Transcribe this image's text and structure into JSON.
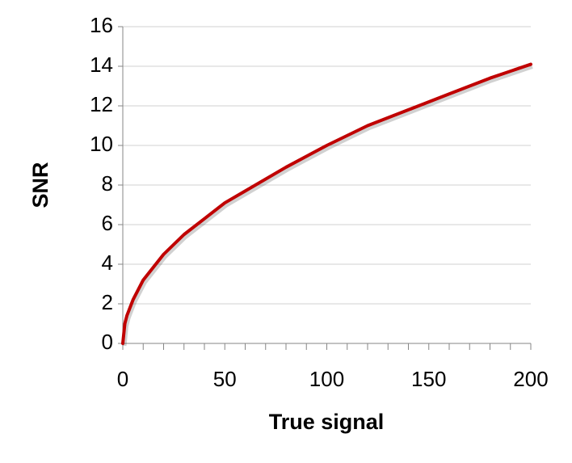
{
  "chart_data": {
    "type": "line",
    "xlabel": "True signal",
    "ylabel": "SNR",
    "x": [
      0,
      1,
      2,
      5,
      10,
      20,
      30,
      40,
      50,
      60,
      80,
      100,
      120,
      140,
      160,
      180,
      200
    ],
    "series": [
      {
        "name": "SNR",
        "color": "#c00000",
        "values": [
          0,
          1,
          1.4,
          2.2,
          3.2,
          4.5,
          5.5,
          6.3,
          7.1,
          7.7,
          8.9,
          10,
          11,
          11.8,
          12.6,
          13.4,
          14.1
        ]
      }
    ],
    "xlim": [
      0,
      200
    ],
    "xticks": [
      0,
      50,
      100,
      150,
      200
    ],
    "xminorticks": [
      0,
      10,
      20,
      30,
      40,
      50,
      60,
      70,
      80,
      90,
      100,
      110,
      120,
      130,
      140,
      150,
      160,
      170,
      180,
      190,
      200
    ],
    "ylim": [
      0,
      16
    ],
    "yticks": [
      0,
      2,
      4,
      6,
      8,
      10,
      12,
      14,
      16
    ],
    "grid": true
  }
}
